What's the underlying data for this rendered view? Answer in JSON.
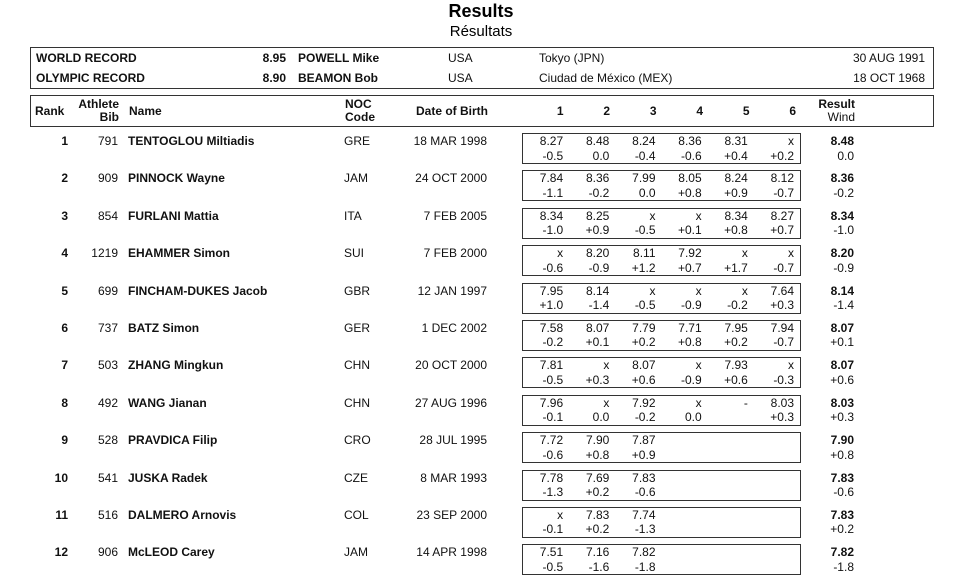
{
  "page": {
    "title": "Results",
    "subtitle": "Résultats"
  },
  "records": {
    "rows": [
      {
        "label": "WORLD RECORD",
        "mark": "8.95",
        "athlete": "POWELL Mike",
        "noc": "USA",
        "location": "Tokyo (JPN)",
        "date": "30 AUG 1991"
      },
      {
        "label": "OLYMPIC RECORD",
        "mark": "8.90",
        "athlete": "BEAMON Bob",
        "noc": "USA",
        "location": "Ciudad de México (MEX)",
        "date": "18 OCT 1968"
      }
    ]
  },
  "results_table": {
    "headers": {
      "rank": "Rank",
      "bib_line1": "Athlete",
      "bib_line2": "Bib",
      "name": "Name",
      "noc_line1": "NOC",
      "noc_line2": "Code",
      "dob": "Date of Birth",
      "attempt_1": "1",
      "attempt_2": "2",
      "attempt_3": "3",
      "attempt_4": "4",
      "attempt_5": "5",
      "attempt_6": "6",
      "result_line1": "Result",
      "result_line2": "Wind"
    },
    "athletes": [
      {
        "rank": "1",
        "bib": "791",
        "name": "TENTOGLOU Miltiadis",
        "noc": "GRE",
        "dob": "18 MAR 1998",
        "attempts": [
          {
            "mark": "8.27",
            "wind": "-0.5"
          },
          {
            "mark": "8.48",
            "wind": "0.0"
          },
          {
            "mark": "8.24",
            "wind": "-0.4"
          },
          {
            "mark": "8.36",
            "wind": "-0.6"
          },
          {
            "mark": "8.31",
            "wind": "+0.4"
          },
          {
            "mark": "x",
            "wind": "+0.2"
          }
        ],
        "result": "8.48",
        "wind": "0.0"
      },
      {
        "rank": "2",
        "bib": "909",
        "name": "PINNOCK Wayne",
        "noc": "JAM",
        "dob": "24 OCT 2000",
        "attempts": [
          {
            "mark": "7.84",
            "wind": "-1.1"
          },
          {
            "mark": "8.36",
            "wind": "-0.2"
          },
          {
            "mark": "7.99",
            "wind": "0.0"
          },
          {
            "mark": "8.05",
            "wind": "+0.8"
          },
          {
            "mark": "8.24",
            "wind": "+0.9"
          },
          {
            "mark": "8.12",
            "wind": "-0.7"
          }
        ],
        "result": "8.36",
        "wind": "-0.2"
      },
      {
        "rank": "3",
        "bib": "854",
        "name": "FURLANI Mattia",
        "noc": "ITA",
        "dob": "7 FEB 2005",
        "attempts": [
          {
            "mark": "8.34",
            "wind": "-1.0"
          },
          {
            "mark": "8.25",
            "wind": "+0.9"
          },
          {
            "mark": "x",
            "wind": "-0.5"
          },
          {
            "mark": "x",
            "wind": "+0.1"
          },
          {
            "mark": "8.34",
            "wind": "+0.8"
          },
          {
            "mark": "8.27",
            "wind": "+0.7"
          }
        ],
        "result": "8.34",
        "wind": "-1.0"
      },
      {
        "rank": "4",
        "bib": "1219",
        "name": "EHAMMER Simon",
        "noc": "SUI",
        "dob": "7 FEB 2000",
        "attempts": [
          {
            "mark": "x",
            "wind": "-0.6"
          },
          {
            "mark": "8.20",
            "wind": "-0.9"
          },
          {
            "mark": "8.11",
            "wind": "+1.2"
          },
          {
            "mark": "7.92",
            "wind": "+0.7"
          },
          {
            "mark": "x",
            "wind": "+1.7"
          },
          {
            "mark": "x",
            "wind": "-0.7"
          }
        ],
        "result": "8.20",
        "wind": "-0.9"
      },
      {
        "rank": "5",
        "bib": "699",
        "name": "FINCHAM-DUKES Jacob",
        "noc": "GBR",
        "dob": "12 JAN 1997",
        "attempts": [
          {
            "mark": "7.95",
            "wind": "+1.0"
          },
          {
            "mark": "8.14",
            "wind": "-1.4"
          },
          {
            "mark": "x",
            "wind": "-0.5"
          },
          {
            "mark": "x",
            "wind": "-0.9"
          },
          {
            "mark": "x",
            "wind": "-0.2"
          },
          {
            "mark": "7.64",
            "wind": "+0.3"
          }
        ],
        "result": "8.14",
        "wind": "-1.4"
      },
      {
        "rank": "6",
        "bib": "737",
        "name": "BATZ Simon",
        "noc": "GER",
        "dob": "1 DEC 2002",
        "attempts": [
          {
            "mark": "7.58",
            "wind": "-0.2"
          },
          {
            "mark": "8.07",
            "wind": "+0.1"
          },
          {
            "mark": "7.79",
            "wind": "+0.2"
          },
          {
            "mark": "7.71",
            "wind": "+0.8"
          },
          {
            "mark": "7.95",
            "wind": "+0.2"
          },
          {
            "mark": "7.94",
            "wind": "-0.7"
          }
        ],
        "result": "8.07",
        "wind": "+0.1"
      },
      {
        "rank": "7",
        "bib": "503",
        "name": "ZHANG Mingkun",
        "noc": "CHN",
        "dob": "20 OCT 2000",
        "attempts": [
          {
            "mark": "7.81",
            "wind": "-0.5"
          },
          {
            "mark": "x",
            "wind": "+0.3"
          },
          {
            "mark": "8.07",
            "wind": "+0.6"
          },
          {
            "mark": "x",
            "wind": "-0.9"
          },
          {
            "mark": "7.93",
            "wind": "+0.6"
          },
          {
            "mark": "x",
            "wind": "-0.3"
          }
        ],
        "result": "8.07",
        "wind": "+0.6"
      },
      {
        "rank": "8",
        "bib": "492",
        "name": "WANG Jianan",
        "noc": "CHN",
        "dob": "27 AUG 1996",
        "attempts": [
          {
            "mark": "7.96",
            "wind": "-0.1"
          },
          {
            "mark": "x",
            "wind": "0.0"
          },
          {
            "mark": "7.92",
            "wind": "-0.2"
          },
          {
            "mark": "x",
            "wind": "0.0"
          },
          {
            "mark": "-",
            "wind": ""
          },
          {
            "mark": "8.03",
            "wind": "+0.3"
          }
        ],
        "result": "8.03",
        "wind": "+0.3"
      },
      {
        "rank": "9",
        "bib": "528",
        "name": "PRAVDICA Filip",
        "noc": "CRO",
        "dob": "28 JUL 1995",
        "attempts": [
          {
            "mark": "7.72",
            "wind": "-0.6"
          },
          {
            "mark": "7.90",
            "wind": "+0.8"
          },
          {
            "mark": "7.87",
            "wind": "+0.9"
          },
          {
            "mark": "",
            "wind": ""
          },
          {
            "mark": "",
            "wind": ""
          },
          {
            "mark": "",
            "wind": ""
          }
        ],
        "result": "7.90",
        "wind": "+0.8"
      },
      {
        "rank": "10",
        "bib": "541",
        "name": "JUSKA Radek",
        "noc": "CZE",
        "dob": "8 MAR 1993",
        "attempts": [
          {
            "mark": "7.78",
            "wind": "-1.3"
          },
          {
            "mark": "7.69",
            "wind": "+0.2"
          },
          {
            "mark": "7.83",
            "wind": "-0.6"
          },
          {
            "mark": "",
            "wind": ""
          },
          {
            "mark": "",
            "wind": ""
          },
          {
            "mark": "",
            "wind": ""
          }
        ],
        "result": "7.83",
        "wind": "-0.6"
      },
      {
        "rank": "11",
        "bib": "516",
        "name": "DALMERO Arnovis",
        "noc": "COL",
        "dob": "23 SEP 2000",
        "attempts": [
          {
            "mark": "x",
            "wind": "-0.1"
          },
          {
            "mark": "7.83",
            "wind": "+0.2"
          },
          {
            "mark": "7.74",
            "wind": "-1.3"
          },
          {
            "mark": "",
            "wind": ""
          },
          {
            "mark": "",
            "wind": ""
          },
          {
            "mark": "",
            "wind": ""
          }
        ],
        "result": "7.83",
        "wind": "+0.2"
      },
      {
        "rank": "12",
        "bib": "906",
        "name": "McLEOD Carey",
        "noc": "JAM",
        "dob": "14 APR 1998",
        "attempts": [
          {
            "mark": "7.51",
            "wind": "-0.5"
          },
          {
            "mark": "7.16",
            "wind": "-1.6"
          },
          {
            "mark": "7.82",
            "wind": "-1.8"
          },
          {
            "mark": "",
            "wind": ""
          },
          {
            "mark": "",
            "wind": ""
          },
          {
            "mark": "",
            "wind": ""
          }
        ],
        "result": "7.82",
        "wind": "-1.8"
      }
    ]
  }
}
